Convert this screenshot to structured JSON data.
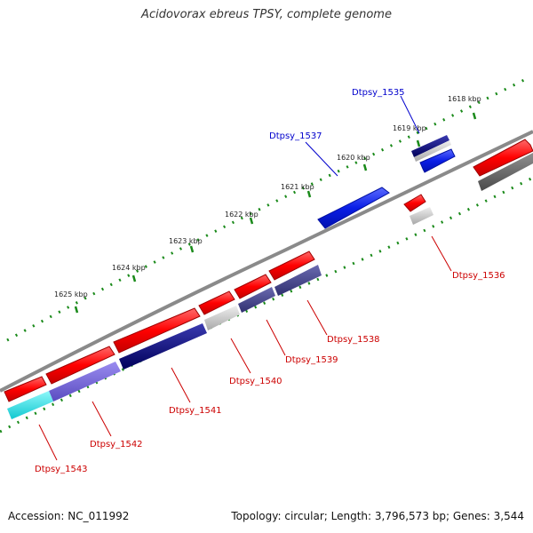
{
  "title": "Acidovorax ebreus TPSY, complete genome",
  "footer": {
    "accession": "Accession: NC_011992",
    "summary": "Topology: circular; Length: 3,796,573 bp; Genes: 3,544"
  },
  "scale_ticks": [
    "1618 kbp",
    "1619 kbp",
    "1620 kbp",
    "1621 kbp",
    "1622 kbp",
    "1623 kbp",
    "1624 kbp",
    "1625 kbp"
  ],
  "genes": [
    {
      "label": "Dtpsy_1535",
      "strand": "forward",
      "color": "#0000cc"
    },
    {
      "label": "Dtpsy_1536",
      "strand": "reverse",
      "color": "#cc0000"
    },
    {
      "label": "Dtpsy_1537",
      "strand": "forward",
      "color": "#0000cc"
    },
    {
      "label": "Dtpsy_1538",
      "strand": "reverse",
      "color": "#cc0000"
    },
    {
      "label": "Dtpsy_1539",
      "strand": "reverse",
      "color": "#cc0000"
    },
    {
      "label": "Dtpsy_1540",
      "strand": "reverse",
      "color": "#cc0000"
    },
    {
      "label": "Dtpsy_1541",
      "strand": "reverse",
      "color": "#cc0000"
    },
    {
      "label": "Dtpsy_1542",
      "strand": "reverse",
      "color": "#cc0000"
    },
    {
      "label": "Dtpsy_1543",
      "strand": "reverse",
      "color": "#cc0000"
    }
  ],
  "colors": {
    "forward_gene": "#1a2ee8",
    "reverse_gene": "#ff1a1a",
    "backbone": "#888888",
    "tick": "#1a8a1a",
    "cog_navy": "#000080",
    "cog_slate": "#4b4b8c",
    "cog_lavender": "#7d6fd6",
    "cog_cyan": "#1fe8ec",
    "cog_grey": "#bbbbbb",
    "cog_dark_grey": "#666666"
  }
}
